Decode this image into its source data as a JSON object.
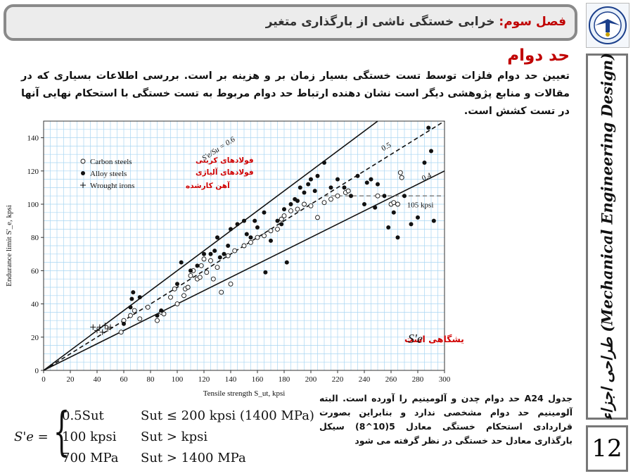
{
  "header": {
    "chapter": "فصل سوم:",
    "title": "خرابی خستگی ناشی از بارگذاری متغیر"
  },
  "logo": {
    "icon": "university-emblem-icon"
  },
  "side_title": "طراحی اجزاء (Mechanical Engineering Design)",
  "page_number": "12",
  "section_title": "حد دوام",
  "paragraph": "تعیین حد دوام فلزات توسط تست خستگی بسیار زمان بر و هزینه بر است. بررسی اطلاعات بسیاری که در مقالات و منابع پژوهشی دیگر است نشان دهنده ارتباط حد دوام مربوط به تست خستگی با استحکام نهایی آنها در تست کشش است.",
  "chart_data": {
    "type": "scatter",
    "xlabel": "Tensile strength S_ut, kpsi",
    "ylabel": "Endurance limit S'_e, kpsi",
    "xlim": [
      0,
      300
    ],
    "ylim": [
      0,
      150
    ],
    "xticks": [
      0,
      20,
      40,
      60,
      80,
      100,
      120,
      140,
      160,
      180,
      200,
      220,
      240,
      260,
      280,
      300
    ],
    "yticks": [
      0,
      20,
      40,
      60,
      80,
      100,
      120,
      140
    ],
    "grid": true,
    "legend_position": "top-left",
    "legend": [
      "Carbon steels",
      "Alloy steels",
      "Wrought irons"
    ],
    "legend_fa": [
      "فولادهای کربنی",
      "فولادهای آلیاژی",
      "آهن کارشده"
    ],
    "line_labels": [
      "S'e/Su = 0.6",
      "0.5",
      "0.4",
      "105 kpsi"
    ],
    "reference_lines": [
      {
        "label": "0.6",
        "slope": 0.6,
        "style": "solid"
      },
      {
        "label": "0.5",
        "slope": 0.5,
        "style": "dashed",
        "cap": 105
      },
      {
        "label": "0.4",
        "slope": 0.4,
        "style": "solid"
      },
      {
        "label": "105 kpsi",
        "value": 105,
        "style": "dashed-gray",
        "from_x": 210
      }
    ],
    "annotation": "حد دوام نمونه آزمایشگاهی است",
    "annotation_symbol": "S'e",
    "series": [
      {
        "name": "Carbon steels",
        "marker": "open-circle",
        "points": [
          [
            58,
            23
          ],
          [
            60,
            30
          ],
          [
            65,
            33
          ],
          [
            68,
            36
          ],
          [
            72,
            31
          ],
          [
            78,
            38
          ],
          [
            85,
            30
          ],
          [
            88,
            35
          ],
          [
            90,
            34
          ],
          [
            95,
            44
          ],
          [
            98,
            49
          ],
          [
            100,
            40
          ],
          [
            105,
            45
          ],
          [
            106,
            49
          ],
          [
            108,
            50
          ],
          [
            110,
            57
          ],
          [
            112,
            60
          ],
          [
            115,
            55
          ],
          [
            117,
            56
          ],
          [
            118,
            63
          ],
          [
            120,
            67
          ],
          [
            122,
            59
          ],
          [
            125,
            66
          ],
          [
            127,
            55
          ],
          [
            130,
            62
          ],
          [
            133,
            47
          ],
          [
            138,
            69
          ],
          [
            140,
            52
          ],
          [
            143,
            72
          ],
          [
            150,
            75
          ],
          [
            155,
            77
          ],
          [
            160,
            80
          ],
          [
            165,
            81
          ],
          [
            170,
            84
          ],
          [
            175,
            85
          ],
          [
            178,
            91
          ],
          [
            180,
            93
          ],
          [
            185,
            96
          ],
          [
            190,
            97
          ],
          [
            195,
            100
          ],
          [
            200,
            99
          ],
          [
            205,
            92
          ],
          [
            210,
            101
          ],
          [
            215,
            103
          ],
          [
            220,
            105
          ],
          [
            226,
            107
          ],
          [
            228,
            108
          ],
          [
            250,
            105
          ],
          [
            260,
            100
          ],
          [
            262,
            101
          ],
          [
            265,
            100
          ],
          [
            267,
            119
          ],
          [
            268,
            116
          ]
        ]
      },
      {
        "name": "Alloy steels",
        "marker": "filled-circle",
        "points": [
          [
            60,
            28
          ],
          [
            65,
            38
          ],
          [
            66,
            43
          ],
          [
            67,
            47
          ],
          [
            72,
            44
          ],
          [
            85,
            33
          ],
          [
            88,
            36
          ],
          [
            100,
            52
          ],
          [
            103,
            65
          ],
          [
            110,
            60
          ],
          [
            115,
            63
          ],
          [
            120,
            70
          ],
          [
            125,
            70
          ],
          [
            128,
            72
          ],
          [
            130,
            80
          ],
          [
            132,
            68
          ],
          [
            135,
            70
          ],
          [
            138,
            75
          ],
          [
            140,
            85
          ],
          [
            145,
            88
          ],
          [
            150,
            90
          ],
          [
            152,
            82
          ],
          [
            155,
            80
          ],
          [
            158,
            90
          ],
          [
            160,
            86
          ],
          [
            165,
            95
          ],
          [
            166,
            59
          ],
          [
            170,
            78
          ],
          [
            175,
            90
          ],
          [
            178,
            88
          ],
          [
            180,
            97
          ],
          [
            182,
            65
          ],
          [
            185,
            100
          ],
          [
            188,
            103
          ],
          [
            190,
            102
          ],
          [
            192,
            110
          ],
          [
            195,
            107
          ],
          [
            198,
            112
          ],
          [
            200,
            115
          ],
          [
            203,
            108
          ],
          [
            205,
            117
          ],
          [
            210,
            125
          ],
          [
            215,
            110
          ],
          [
            220,
            115
          ],
          [
            225,
            110
          ],
          [
            230,
            105
          ],
          [
            235,
            117
          ],
          [
            240,
            100
          ],
          [
            242,
            113
          ],
          [
            245,
            115
          ],
          [
            248,
            98
          ],
          [
            250,
            112
          ],
          [
            255,
            105
          ],
          [
            258,
            86
          ],
          [
            262,
            95
          ],
          [
            265,
            80
          ],
          [
            270,
            105
          ],
          [
            275,
            88
          ],
          [
            280,
            92
          ],
          [
            285,
            125
          ],
          [
            288,
            146
          ],
          [
            290,
            132
          ],
          [
            292,
            90
          ]
        ]
      },
      {
        "name": "Wrought irons",
        "marker": "plus",
        "points": [
          [
            37,
            26
          ],
          [
            40,
            24
          ],
          [
            42,
            26
          ],
          [
            44,
            23
          ],
          [
            46,
            27
          ],
          [
            48,
            25
          ],
          [
            50,
            26
          ]
        ]
      }
    ]
  },
  "note": "جدول A24 حد دوام چدن و آلومینیم را آورده است. البته آلومینیم حد دوام مشخصی ندارد و بنابراین بصورت قراردادی استحکام خستگی معادل 5(10^8) سیکل بارگذاری معادل حد خستگی در نظر گرفته می شود",
  "formula": {
    "lhs": "S'e =",
    "rows": [
      {
        "value": "0.5Sut",
        "condition": "Sut ≤ 200 kpsi (1400 MPa)"
      },
      {
        "value": "100 kpsi",
        "condition": "Sut > kpsi"
      },
      {
        "value": "700 MPa",
        "condition": "Sut > 1400 MPa"
      }
    ]
  }
}
